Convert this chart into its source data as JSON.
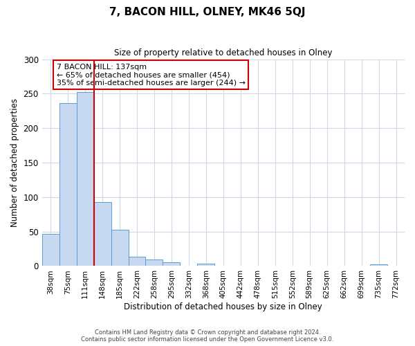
{
  "title": "7, BACON HILL, OLNEY, MK46 5QJ",
  "subtitle": "Size of property relative to detached houses in Olney",
  "xlabel": "Distribution of detached houses by size in Olney",
  "ylabel": "Number of detached properties",
  "bar_labels": [
    "38sqm",
    "75sqm",
    "111sqm",
    "148sqm",
    "185sqm",
    "222sqm",
    "258sqm",
    "295sqm",
    "332sqm",
    "368sqm",
    "405sqm",
    "442sqm",
    "478sqm",
    "515sqm",
    "552sqm",
    "589sqm",
    "625sqm",
    "662sqm",
    "699sqm",
    "735sqm",
    "772sqm"
  ],
  "bar_values": [
    47,
    236,
    252,
    93,
    53,
    14,
    9,
    5,
    0,
    3,
    0,
    0,
    0,
    0,
    0,
    0,
    0,
    0,
    0,
    2,
    0
  ],
  "bar_color": "#c6d9f0",
  "bar_edge_color": "#5b9bd5",
  "vline_x": 2.5,
  "vline_color": "#cc0000",
  "annotation_text": "7 BACON HILL: 137sqm\n← 65% of detached houses are smaller (454)\n35% of semi-detached houses are larger (244) →",
  "annotation_box_color": "#ffffff",
  "annotation_box_edge_color": "#cc0000",
  "ylim": [
    0,
    300
  ],
  "yticks": [
    0,
    50,
    100,
    150,
    200,
    250,
    300
  ],
  "footer_line1": "Contains HM Land Registry data © Crown copyright and database right 2024.",
  "footer_line2": "Contains public sector information licensed under the Open Government Licence v3.0.",
  "background_color": "#ffffff",
  "grid_color": "#d0d8e8"
}
